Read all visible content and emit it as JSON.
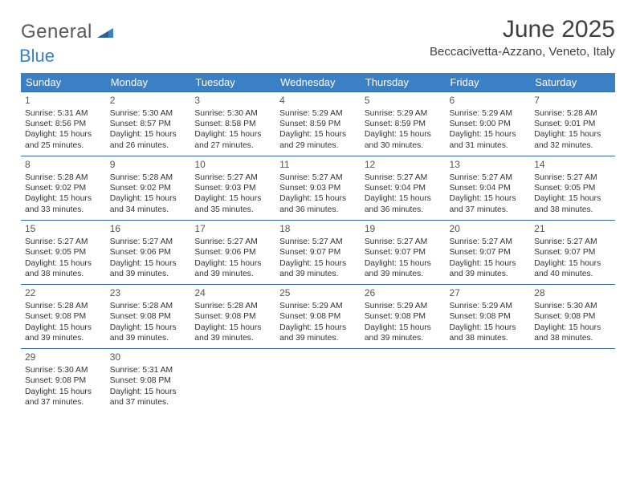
{
  "logo": {
    "text1": "General",
    "text2": "Blue"
  },
  "title": "June 2025",
  "location": "Beccacivetta-Azzano, Veneto, Italy",
  "colors": {
    "header_bg": "#3b7fc4",
    "header_text": "#ffffff",
    "row_border": "#2f6aa8",
    "body_text": "#333333",
    "title_text": "#404040",
    "logo_gray": "#5a5a5a",
    "logo_blue": "#3b7fc4"
  },
  "day_headers": [
    "Sunday",
    "Monday",
    "Tuesday",
    "Wednesday",
    "Thursday",
    "Friday",
    "Saturday"
  ],
  "weeks": [
    [
      {
        "n": "1",
        "sr": "Sunrise: 5:31 AM",
        "ss": "Sunset: 8:56 PM",
        "d1": "Daylight: 15 hours",
        "d2": "and 25 minutes."
      },
      {
        "n": "2",
        "sr": "Sunrise: 5:30 AM",
        "ss": "Sunset: 8:57 PM",
        "d1": "Daylight: 15 hours",
        "d2": "and 26 minutes."
      },
      {
        "n": "3",
        "sr": "Sunrise: 5:30 AM",
        "ss": "Sunset: 8:58 PM",
        "d1": "Daylight: 15 hours",
        "d2": "and 27 minutes."
      },
      {
        "n": "4",
        "sr": "Sunrise: 5:29 AM",
        "ss": "Sunset: 8:59 PM",
        "d1": "Daylight: 15 hours",
        "d2": "and 29 minutes."
      },
      {
        "n": "5",
        "sr": "Sunrise: 5:29 AM",
        "ss": "Sunset: 8:59 PM",
        "d1": "Daylight: 15 hours",
        "d2": "and 30 minutes."
      },
      {
        "n": "6",
        "sr": "Sunrise: 5:29 AM",
        "ss": "Sunset: 9:00 PM",
        "d1": "Daylight: 15 hours",
        "d2": "and 31 minutes."
      },
      {
        "n": "7",
        "sr": "Sunrise: 5:28 AM",
        "ss": "Sunset: 9:01 PM",
        "d1": "Daylight: 15 hours",
        "d2": "and 32 minutes."
      }
    ],
    [
      {
        "n": "8",
        "sr": "Sunrise: 5:28 AM",
        "ss": "Sunset: 9:02 PM",
        "d1": "Daylight: 15 hours",
        "d2": "and 33 minutes."
      },
      {
        "n": "9",
        "sr": "Sunrise: 5:28 AM",
        "ss": "Sunset: 9:02 PM",
        "d1": "Daylight: 15 hours",
        "d2": "and 34 minutes."
      },
      {
        "n": "10",
        "sr": "Sunrise: 5:27 AM",
        "ss": "Sunset: 9:03 PM",
        "d1": "Daylight: 15 hours",
        "d2": "and 35 minutes."
      },
      {
        "n": "11",
        "sr": "Sunrise: 5:27 AM",
        "ss": "Sunset: 9:03 PM",
        "d1": "Daylight: 15 hours",
        "d2": "and 36 minutes."
      },
      {
        "n": "12",
        "sr": "Sunrise: 5:27 AM",
        "ss": "Sunset: 9:04 PM",
        "d1": "Daylight: 15 hours",
        "d2": "and 36 minutes."
      },
      {
        "n": "13",
        "sr": "Sunrise: 5:27 AM",
        "ss": "Sunset: 9:04 PM",
        "d1": "Daylight: 15 hours",
        "d2": "and 37 minutes."
      },
      {
        "n": "14",
        "sr": "Sunrise: 5:27 AM",
        "ss": "Sunset: 9:05 PM",
        "d1": "Daylight: 15 hours",
        "d2": "and 38 minutes."
      }
    ],
    [
      {
        "n": "15",
        "sr": "Sunrise: 5:27 AM",
        "ss": "Sunset: 9:05 PM",
        "d1": "Daylight: 15 hours",
        "d2": "and 38 minutes."
      },
      {
        "n": "16",
        "sr": "Sunrise: 5:27 AM",
        "ss": "Sunset: 9:06 PM",
        "d1": "Daylight: 15 hours",
        "d2": "and 39 minutes."
      },
      {
        "n": "17",
        "sr": "Sunrise: 5:27 AM",
        "ss": "Sunset: 9:06 PM",
        "d1": "Daylight: 15 hours",
        "d2": "and 39 minutes."
      },
      {
        "n": "18",
        "sr": "Sunrise: 5:27 AM",
        "ss": "Sunset: 9:07 PM",
        "d1": "Daylight: 15 hours",
        "d2": "and 39 minutes."
      },
      {
        "n": "19",
        "sr": "Sunrise: 5:27 AM",
        "ss": "Sunset: 9:07 PM",
        "d1": "Daylight: 15 hours",
        "d2": "and 39 minutes."
      },
      {
        "n": "20",
        "sr": "Sunrise: 5:27 AM",
        "ss": "Sunset: 9:07 PM",
        "d1": "Daylight: 15 hours",
        "d2": "and 39 minutes."
      },
      {
        "n": "21",
        "sr": "Sunrise: 5:27 AM",
        "ss": "Sunset: 9:07 PM",
        "d1": "Daylight: 15 hours",
        "d2": "and 40 minutes."
      }
    ],
    [
      {
        "n": "22",
        "sr": "Sunrise: 5:28 AM",
        "ss": "Sunset: 9:08 PM",
        "d1": "Daylight: 15 hours",
        "d2": "and 39 minutes."
      },
      {
        "n": "23",
        "sr": "Sunrise: 5:28 AM",
        "ss": "Sunset: 9:08 PM",
        "d1": "Daylight: 15 hours",
        "d2": "and 39 minutes."
      },
      {
        "n": "24",
        "sr": "Sunrise: 5:28 AM",
        "ss": "Sunset: 9:08 PM",
        "d1": "Daylight: 15 hours",
        "d2": "and 39 minutes."
      },
      {
        "n": "25",
        "sr": "Sunrise: 5:29 AM",
        "ss": "Sunset: 9:08 PM",
        "d1": "Daylight: 15 hours",
        "d2": "and 39 minutes."
      },
      {
        "n": "26",
        "sr": "Sunrise: 5:29 AM",
        "ss": "Sunset: 9:08 PM",
        "d1": "Daylight: 15 hours",
        "d2": "and 39 minutes."
      },
      {
        "n": "27",
        "sr": "Sunrise: 5:29 AM",
        "ss": "Sunset: 9:08 PM",
        "d1": "Daylight: 15 hours",
        "d2": "and 38 minutes."
      },
      {
        "n": "28",
        "sr": "Sunrise: 5:30 AM",
        "ss": "Sunset: 9:08 PM",
        "d1": "Daylight: 15 hours",
        "d2": "and 38 minutes."
      }
    ],
    [
      {
        "n": "29",
        "sr": "Sunrise: 5:30 AM",
        "ss": "Sunset: 9:08 PM",
        "d1": "Daylight: 15 hours",
        "d2": "and 37 minutes."
      },
      {
        "n": "30",
        "sr": "Sunrise: 5:31 AM",
        "ss": "Sunset: 9:08 PM",
        "d1": "Daylight: 15 hours",
        "d2": "and 37 minutes."
      },
      null,
      null,
      null,
      null,
      null
    ]
  ]
}
